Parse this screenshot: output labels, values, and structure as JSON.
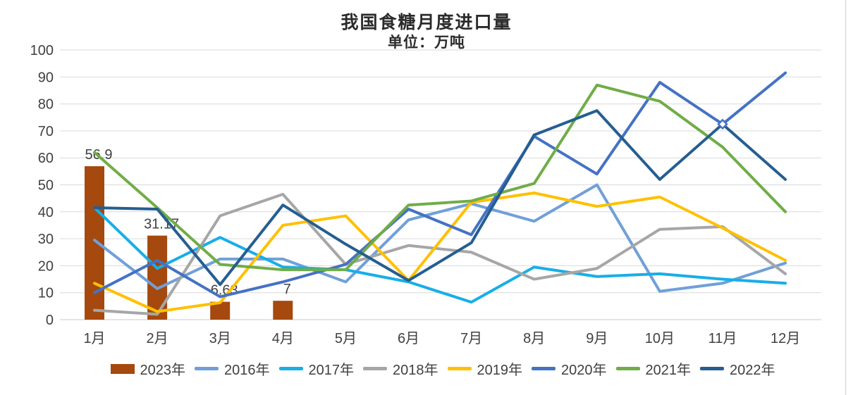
{
  "chart_data": {
    "type": "combo-bar-line",
    "title": "我国食糖月度进口量",
    "subtitle": "单位：万吨",
    "categories": [
      "1月",
      "2月",
      "3月",
      "4月",
      "5月",
      "6月",
      "7月",
      "8月",
      "9月",
      "10月",
      "11月",
      "12月"
    ],
    "ylim": [
      0,
      100
    ],
    "ytick_step": 10,
    "ytick_labels": [
      "0",
      "10",
      "20",
      "30",
      "40",
      "50",
      "60",
      "70",
      "80",
      "90",
      "100"
    ],
    "grid": "horizontal",
    "legend_position": "bottom",
    "bar_series": {
      "name": "2023年",
      "color": "#A5490E",
      "values": [
        56.9,
        31.17,
        6.63,
        7,
        null,
        null,
        null,
        null,
        null,
        null,
        null,
        null
      ],
      "data_labels": [
        "56.9",
        "31.17",
        "6.63",
        "7"
      ]
    },
    "line_series": [
      {
        "name": "2016年",
        "color": "#70A0D8",
        "values": [
          29.5,
          11.5,
          22.5,
          22.5,
          14,
          37,
          43,
          36.5,
          50,
          10.5,
          13.5,
          21
        ]
      },
      {
        "name": "2017年",
        "color": "#18AEE8",
        "values": [
          41.5,
          19,
          30.5,
          19.5,
          18.5,
          14,
          6.5,
          19.5,
          16,
          17,
          15,
          13.5
        ]
      },
      {
        "name": "2018年",
        "color": "#A6A6A6",
        "values": [
          3.5,
          2,
          38.5,
          46.5,
          20.5,
          27.5,
          25,
          15,
          19,
          33.5,
          34.5,
          17
        ]
      },
      {
        "name": "2019年",
        "color": "#FFC000",
        "values": [
          13.5,
          3,
          6.3,
          35,
          38.5,
          14.5,
          43.5,
          47,
          42,
          45.5,
          34,
          22
        ]
      },
      {
        "name": "2020年",
        "color": "#4472C4",
        "values": [
          10,
          22,
          8.5,
          14,
          20.5,
          41,
          31.5,
          68,
          54,
          88,
          72.5,
          91.5
        ]
      },
      {
        "name": "2021年",
        "color": "#70AD47",
        "values": [
          62,
          41.5,
          20.5,
          18.5,
          18.5,
          42.5,
          44,
          50.5,
          87,
          81,
          64,
          40
        ]
      },
      {
        "name": "2022年",
        "color": "#255E91",
        "values": [
          41.5,
          41,
          13,
          42.5,
          28,
          14.5,
          28.5,
          68.5,
          77.5,
          52,
          72.5,
          52
        ]
      }
    ],
    "marker": {
      "series": "2020年",
      "category": "11月",
      "value": 72.5,
      "shape": "diamond"
    },
    "colors": {
      "grid": "#D9D9D9",
      "axis_line": "#C8C8C8",
      "text": "#404040",
      "right_border": "#DCDCDC"
    }
  }
}
